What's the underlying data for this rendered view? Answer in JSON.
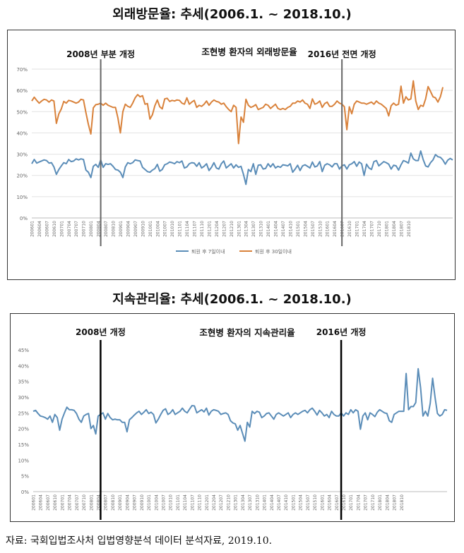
{
  "chart_data": [
    {
      "type": "line",
      "heading": "외래방문율: 추세(2006.1. ~ 2018.10.)",
      "title": "조현병 환자의 외래방문율",
      "annotations": [
        {
          "text": "2008년 부분 개정",
          "x_index": 28
        },
        {
          "text": "2016년 전면 개정",
          "x_index": 126
        }
      ],
      "x_tick_labels": [
        "200601",
        "200604",
        "200607",
        "200610",
        "200701",
        "200704",
        "200707",
        "200710",
        "200801",
        "200804",
        "200807",
        "200810",
        "200901",
        "200904",
        "200907",
        "200910",
        "201001",
        "201004",
        "201007",
        "201010",
        "201101",
        "201104",
        "201107",
        "201110",
        "201201",
        "201204",
        "201207",
        "201210",
        "201301",
        "201304",
        "201307",
        "201310",
        "201401",
        "201404",
        "201407",
        "201410",
        "201501",
        "201504",
        "201507",
        "201510",
        "201601",
        "201604",
        "201607",
        "201610",
        "201701",
        "201704",
        "201707",
        "201710",
        "201801",
        "201804",
        "201807",
        "201810"
      ],
      "y_ticks": [
        "0%",
        "10%",
        "20%",
        "30%",
        "40%",
        "50%",
        "60%",
        "70%"
      ],
      "ylim": [
        0,
        70
      ],
      "legend_position": "bottom",
      "series": [
        {
          "name": "퇴원 후 7일이내",
          "color": "#5b8db8",
          "values": [
            25.5,
            27.5,
            25.8,
            26.3,
            26.8,
            27.3,
            27.0,
            25.8,
            26.0,
            24.0,
            20.5,
            22.8,
            24.5,
            26.0,
            25.5,
            27.5,
            26.5,
            26.8,
            27.8,
            27.3,
            27.8,
            27.5,
            22.5,
            21.5,
            19.0,
            24.3,
            25.2,
            23.8,
            27.3,
            23.8,
            25.5,
            25.2,
            25.5,
            24.3,
            22.8,
            22.5,
            21.5,
            19.0,
            24.0,
            26.0,
            25.5,
            26.0,
            27.3,
            27.0,
            26.8,
            23.8,
            22.8,
            21.8,
            21.5,
            22.5,
            23.2,
            25.2,
            22.0,
            22.8,
            25.0,
            25.5,
            26.3,
            26.0,
            25.5,
            26.5,
            26.0,
            26.8,
            23.5,
            24.0,
            25.5,
            26.0,
            25.8,
            24.3,
            26.0,
            23.5,
            24.3,
            25.5,
            22.3,
            23.8,
            26.0,
            23.5,
            23.0,
            25.5,
            26.8,
            23.5,
            24.5,
            25.5,
            23.5,
            25.0,
            23.8,
            24.3,
            20.5,
            15.8,
            22.8,
            21.8,
            25.5,
            20.5,
            24.8,
            25.0,
            23.0,
            23.3,
            25.5,
            24.0,
            25.5,
            23.5,
            24.3,
            23.8,
            25.0,
            24.8,
            24.5,
            25.5,
            21.5,
            23.0,
            24.8,
            22.3,
            24.5,
            25.0,
            24.3,
            23.5,
            26.3,
            24.0,
            24.5,
            26.5,
            21.8,
            24.8,
            25.5,
            25.0,
            24.0,
            25.5,
            25.5,
            23.0,
            24.5,
            25.0,
            23.0,
            25.0,
            25.5,
            26.5,
            24.3,
            26.3,
            25.5,
            20.0,
            25.3,
            23.5,
            22.8,
            26.5,
            27.0,
            24.5,
            25.5,
            26.5,
            26.0,
            25.3,
            23.0,
            24.8,
            24.5,
            22.5,
            25.0,
            27.0,
            26.5,
            25.8,
            30.5,
            27.8,
            27.0,
            27.0,
            31.5,
            27.5,
            24.5,
            24.0,
            26.0,
            27.3,
            29.8,
            28.8,
            28.5,
            27.3,
            25.3,
            27.2,
            28.0,
            27.3
          ]
        },
        {
          "name": "퇴원 후 30일이내",
          "color": "#d9823b",
          "values": [
            55.0,
            56.8,
            55.3,
            54.0,
            55.0,
            55.8,
            55.5,
            54.5,
            55.5,
            55.0,
            44.5,
            49.0,
            51.3,
            54.8,
            54.0,
            55.3,
            55.0,
            54.5,
            54.0,
            54.5,
            55.8,
            55.5,
            49.5,
            44.0,
            39.5,
            51.8,
            53.3,
            53.5,
            54.0,
            53.0,
            54.0,
            53.0,
            52.5,
            52.0,
            52.0,
            47.0,
            40.0,
            50.0,
            53.5,
            52.5,
            52.0,
            54.0,
            56.5,
            58.0,
            57.0,
            57.5,
            53.5,
            53.8,
            46.5,
            48.5,
            52.8,
            55.5,
            52.3,
            51.3,
            56.0,
            56.3,
            54.8,
            55.3,
            55.0,
            55.5,
            55.3,
            54.0,
            53.5,
            56.5,
            53.5,
            54.5,
            55.3,
            52.0,
            53.0,
            52.5,
            53.5,
            55.0,
            53.0,
            54.5,
            55.5,
            54.8,
            54.5,
            53.5,
            54.0,
            52.3,
            51.0,
            50.0,
            53.0,
            52.0,
            35.0,
            47.5,
            45.0,
            55.8,
            53.0,
            52.0,
            52.5,
            53.3,
            51.0,
            51.5,
            52.0,
            53.5,
            53.0,
            51.5,
            52.5,
            53.5,
            51.5,
            51.0,
            51.5,
            51.0,
            52.0,
            52.5,
            54.0,
            54.0,
            55.0,
            54.5,
            55.5,
            54.0,
            53.5,
            51.5,
            56.0,
            53.5,
            54.0,
            55.0,
            52.0,
            53.8,
            54.5,
            52.5,
            52.5,
            53.5,
            55.0,
            54.0,
            53.5,
            52.3,
            41.5,
            52.3,
            49.0,
            53.5,
            55.0,
            54.5,
            54.0,
            54.0,
            53.5,
            54.0,
            54.5,
            53.5,
            55.0,
            54.0,
            53.5,
            52.5,
            51.5,
            48.0,
            52.8,
            54.0,
            53.0,
            53.5,
            62.0,
            54.0,
            57.0,
            55.5,
            56.0,
            64.5,
            55.0,
            51.0,
            53.0,
            52.5,
            56.0,
            61.8,
            59.5,
            57.0,
            56.5,
            54.5,
            57.0,
            61.5
          ]
        }
      ]
    },
    {
      "type": "line",
      "heading": "지속관리율: 추세(2006.1. ~ 2018.10.)",
      "title": "조현병 환자의 지속관리율",
      "annotations": [
        {
          "text": "2008년 개정",
          "x_index": 28
        },
        {
          "text": "2016년 개정",
          "x_index": 128
        }
      ],
      "x_tick_labels": [
        "200601",
        "200604",
        "200607",
        "200610",
        "200701",
        "200704",
        "200707",
        "200710",
        "200801",
        "200804",
        "200807",
        "200810",
        "200901",
        "200904",
        "200907",
        "200910",
        "201001",
        "201004",
        "201007",
        "201010",
        "201101",
        "201104",
        "201107",
        "201110",
        "201201",
        "201204",
        "201207",
        "201210",
        "201301",
        "201304",
        "201307",
        "201310",
        "201401",
        "201404",
        "201407",
        "201410",
        "201501",
        "201504",
        "201507",
        "201510",
        "201601",
        "201604",
        "201607",
        "201610",
        "201701",
        "201704",
        "201707",
        "201710",
        "201801",
        "201804",
        "201807",
        "201810"
      ],
      "y_ticks": [
        "0%",
        "5%",
        "10%",
        "15%",
        "20%",
        "25%",
        "30%",
        "35%",
        "40%",
        "45%"
      ],
      "ylim": [
        0,
        45
      ],
      "series": [
        {
          "name": "지속관리율",
          "color": "#5b8db8",
          "values": [
            25.5,
            25.8,
            24.8,
            24.0,
            23.8,
            23.5,
            23.0,
            24.0,
            22.0,
            24.5,
            23.5,
            19.5,
            23.0,
            25.0,
            26.8,
            26.0,
            26.0,
            25.8,
            24.8,
            23.0,
            22.0,
            24.0,
            24.5,
            24.8,
            20.0,
            21.0,
            18.3,
            24.0,
            24.5,
            25.0,
            23.0,
            24.8,
            23.5,
            22.8,
            23.0,
            22.8,
            22.8,
            22.0,
            22.0,
            19.0,
            22.8,
            23.5,
            24.3,
            25.0,
            25.5,
            24.5,
            25.2,
            26.0,
            24.8,
            25.2,
            24.5,
            21.8,
            23.0,
            24.5,
            25.8,
            26.3,
            24.5,
            25.0,
            26.0,
            24.5,
            25.0,
            25.5,
            26.5,
            25.5,
            25.0,
            26.2,
            27.3,
            27.2,
            25.0,
            25.5,
            26.0,
            25.3,
            26.5,
            24.3,
            25.5,
            26.0,
            25.8,
            25.5,
            24.5,
            24.8,
            25.0,
            24.5,
            22.5,
            21.8,
            21.5,
            19.5,
            21.0,
            18.5,
            16.0,
            22.0,
            20.5,
            25.5,
            24.8,
            25.5,
            25.2,
            23.5,
            24.0,
            24.8,
            25.0,
            24.0,
            23.0,
            24.5,
            25.0,
            24.5,
            24.0,
            24.5,
            25.0,
            23.5,
            24.5,
            25.0,
            24.5,
            25.0,
            25.5,
            25.8,
            25.0,
            26.0,
            26.5,
            25.5,
            24.3,
            25.8,
            25.0,
            24.0,
            24.5,
            23.5,
            25.5,
            24.5,
            24.0,
            24.0,
            25.0,
            24.0,
            25.0,
            24.5,
            26.0,
            25.0,
            26.0,
            25.5,
            19.8,
            24.0,
            25.0,
            22.8,
            25.0,
            24.5,
            23.8,
            25.2,
            26.0,
            25.5,
            25.0,
            24.8,
            22.5,
            22.0,
            24.5,
            25.0,
            25.5,
            25.5,
            25.5,
            37.5,
            26.0,
            27.0,
            27.0,
            28.3,
            39.0,
            33.0,
            24.0,
            25.5,
            24.0,
            28.0,
            36.0,
            30.0,
            24.8,
            24.0,
            24.5,
            26.0,
            25.8
          ]
        }
      ]
    }
  ],
  "source": "자료: 국회입법조사처 입법영향분석 데이터 분석자료, 2019.10."
}
